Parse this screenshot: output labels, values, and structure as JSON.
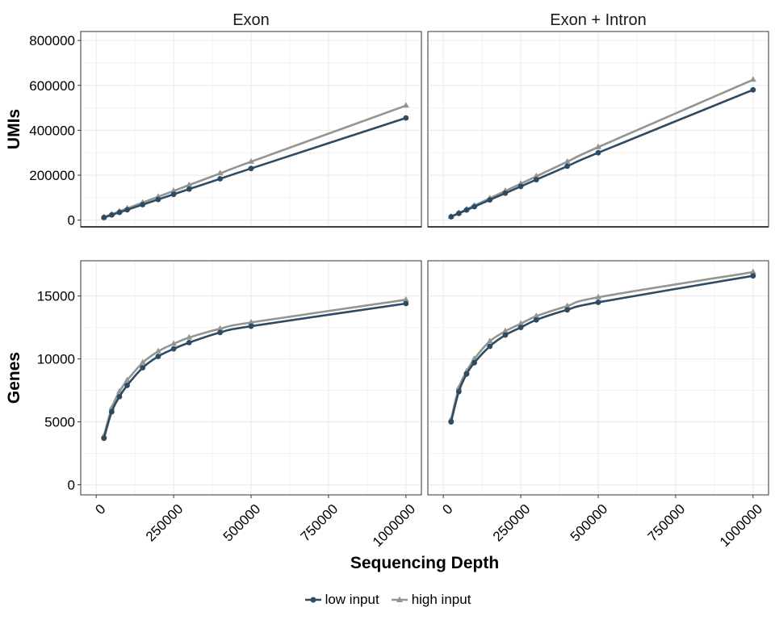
{
  "chart_data": {
    "type": "line",
    "xlabel": "Sequencing Depth",
    "x_ticks": [
      0,
      250000,
      500000,
      750000,
      1000000
    ],
    "x_tick_labels": [
      "0",
      "250000",
      "500000",
      "750000",
      "1000000"
    ],
    "xlim": [
      -50000,
      1050000
    ],
    "x": [
      25000,
      50000,
      75000,
      100000,
      150000,
      200000,
      250000,
      300000,
      400000,
      500000,
      1000000
    ],
    "columns": [
      "Exon",
      "Exon + Intron"
    ],
    "rows": [
      {
        "ylabel": "UMIs",
        "ylim": [
          -30000,
          840000
        ],
        "y_ticks": [
          0,
          200000,
          400000,
          600000,
          800000
        ],
        "y_tick_labels": [
          "0",
          "200000",
          "400000",
          "600000",
          "800000"
        ]
      },
      {
        "ylabel": "Genes",
        "ylim": [
          -800,
          17800
        ],
        "y_ticks": [
          0,
          5000,
          10000,
          15000
        ],
        "y_tick_labels": [
          "0",
          "5000",
          "10000",
          "15000"
        ]
      }
    ],
    "panels": [
      {
        "column": "Exon",
        "row": "UMIs",
        "series": [
          {
            "name": "low input",
            "values": [
              11500,
              23000,
              34500,
              46000,
              69000,
              92000,
              115000,
              138000,
              184000,
              230000,
              455000
            ]
          },
          {
            "name": "high input",
            "values": [
              13000,
              26000,
              39000,
              52000,
              78000,
              104000,
              130000,
              156000,
              208000,
              260000,
              510000
            ]
          }
        ]
      },
      {
        "column": "Exon + Intron",
        "row": "UMIs",
        "series": [
          {
            "name": "low input",
            "values": [
              15000,
              30000,
              45000,
              60000,
              90000,
              120000,
              150000,
              180000,
              240000,
              300000,
              580000
            ]
          },
          {
            "name": "high input",
            "values": [
              16000,
              32000,
              48500,
              65000,
              97000,
              130000,
              162000,
              195000,
              260000,
              325000,
              625000
            ]
          }
        ]
      },
      {
        "column": "Exon",
        "row": "Genes",
        "series": [
          {
            "name": "low input",
            "values": [
              3700,
              5800,
              7000,
              7900,
              9300,
              10200,
              10800,
              11300,
              12100,
              12600,
              14400
            ]
          },
          {
            "name": "high input",
            "values": [
              3900,
              6100,
              7400,
              8300,
              9700,
              10600,
              11200,
              11700,
              12400,
              12900,
              14700
            ]
          }
        ]
      },
      {
        "column": "Exon + Intron",
        "row": "Genes",
        "series": [
          {
            "name": "low input",
            "values": [
              5000,
              7400,
              8800,
              9700,
              11000,
              11900,
              12500,
              13100,
              13900,
              14500,
              16600
            ]
          },
          {
            "name": "high input",
            "values": [
              5200,
              7700,
              9000,
              10000,
              11400,
              12200,
              12800,
              13400,
              14200,
              14900,
              16900
            ]
          }
        ]
      }
    ],
    "legend": {
      "position": "bottom",
      "items": [
        {
          "label": "low input",
          "color": "#2e4b64",
          "marker": "circle"
        },
        {
          "label": "high input",
          "color": "#949490",
          "marker": "triangle"
        }
      ]
    },
    "grid": true,
    "colors": {
      "low": "#2e4b64",
      "high": "#949490",
      "grid": "#ebebeb",
      "panel_border": "#333333"
    }
  }
}
